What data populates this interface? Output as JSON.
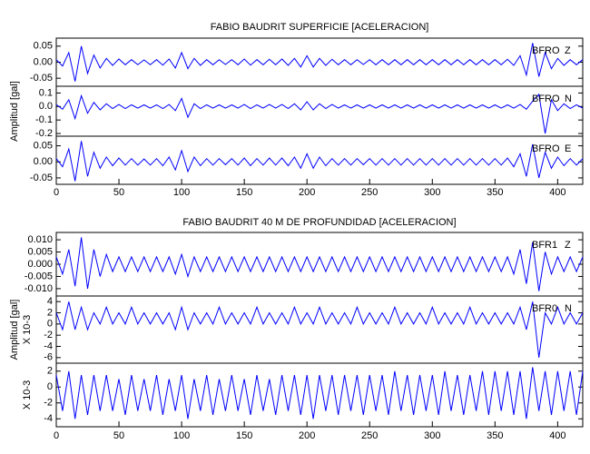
{
  "chart_data": [
    {
      "type": "line",
      "title": "FABIO BAUDRIT SUPERFICIE [ACELERACION]",
      "ylabel": "Amplitud [gal]",
      "color": "#0000ff",
      "xlim": [
        0,
        420
      ],
      "xticks": [
        0,
        50,
        100,
        150,
        200,
        250,
        300,
        350,
        400
      ],
      "x": [
        0,
        5,
        10,
        15,
        20,
        25,
        30,
        35,
        40,
        45,
        50,
        55,
        60,
        65,
        70,
        75,
        80,
        85,
        90,
        95,
        100,
        105,
        110,
        115,
        120,
        125,
        130,
        135,
        140,
        145,
        150,
        155,
        160,
        165,
        170,
        175,
        180,
        185,
        190,
        195,
        200,
        205,
        210,
        215,
        220,
        225,
        230,
        235,
        240,
        245,
        250,
        255,
        260,
        265,
        270,
        275,
        280,
        285,
        290,
        295,
        300,
        305,
        310,
        315,
        320,
        325,
        330,
        335,
        340,
        345,
        350,
        355,
        360,
        365,
        370,
        375,
        380,
        385,
        390,
        395,
        400,
        405,
        410,
        415,
        420
      ],
      "panels": [
        {
          "station": "BFRO",
          "component": "Z",
          "ylim": [
            -0.075,
            0.075
          ],
          "yticks": [
            0.05,
            {
              "value": 0,
              "label": "0.00"
            },
            -0.05
          ],
          "values": [
            0.008,
            -0.012,
            0.03,
            -0.06,
            0.05,
            -0.035,
            0.022,
            -0.018,
            0.012,
            -0.01,
            0.01,
            -0.008,
            0.008,
            -0.008,
            0.007,
            -0.008,
            0.008,
            -0.009,
            0.01,
            -0.018,
            0.03,
            -0.02,
            0.012,
            -0.01,
            0.008,
            -0.008,
            0.008,
            -0.007,
            0.008,
            -0.008,
            0.01,
            -0.009,
            0.008,
            -0.008,
            0.009,
            -0.008,
            0.01,
            -0.01,
            0.012,
            -0.015,
            0.02,
            -0.015,
            0.012,
            -0.01,
            0.009,
            -0.008,
            0.008,
            -0.008,
            0.008,
            -0.007,
            0.008,
            -0.008,
            0.008,
            -0.008,
            0.008,
            -0.008,
            0.008,
            -0.008,
            0.008,
            -0.008,
            0.008,
            -0.008,
            0.008,
            -0.008,
            0.008,
            -0.008,
            0.008,
            -0.008,
            0.008,
            -0.008,
            0.008,
            -0.008,
            0.009,
            -0.01,
            0.02,
            -0.04,
            0.06,
            -0.045,
            0.03,
            -0.02,
            0.012,
            -0.01,
            0.008,
            -0.008,
            0.008
          ]
        },
        {
          "station": "BFRO",
          "component": "N",
          "ylim": [
            -0.22,
            0.15
          ],
          "yticks": [
            0.1,
            {
              "value": 0,
              "label": "0.0"
            },
            -0.1,
            -0.2
          ],
          "values": [
            0.015,
            -0.02,
            0.05,
            -0.09,
            0.08,
            -0.05,
            0.03,
            -0.025,
            0.02,
            -0.015,
            0.015,
            -0.015,
            0.012,
            -0.012,
            0.012,
            -0.012,
            0.012,
            -0.015,
            0.015,
            -0.03,
            0.06,
            -0.08,
            0.02,
            -0.015,
            0.012,
            -0.012,
            0.012,
            -0.012,
            0.012,
            -0.012,
            0.015,
            -0.015,
            0.012,
            -0.012,
            0.015,
            -0.012,
            0.015,
            -0.015,
            0.02,
            -0.025,
            0.035,
            -0.025,
            0.02,
            -0.015,
            0.015,
            -0.012,
            0.012,
            -0.012,
            0.012,
            -0.012,
            0.012,
            -0.012,
            0.012,
            -0.012,
            0.012,
            -0.012,
            0.012,
            -0.012,
            0.012,
            -0.012,
            0.012,
            -0.012,
            0.012,
            -0.012,
            0.012,
            -0.012,
            0.012,
            -0.012,
            0.012,
            -0.012,
            0.012,
            -0.012,
            0.012,
            -0.012,
            0.015,
            -0.02,
            0.04,
            0.09,
            -0.2,
            0.05,
            -0.03,
            0.02,
            -0.015,
            0.012,
            -0.012
          ]
        },
        {
          "station": "BFRO",
          "component": "E",
          "ylim": [
            -0.07,
            0.08
          ],
          "yticks": [
            0.05,
            {
              "value": 0,
              "label": "0.00"
            },
            -0.05
          ],
          "values": [
            0.01,
            -0.015,
            0.04,
            -0.06,
            0.065,
            -0.045,
            0.03,
            -0.02,
            0.015,
            -0.012,
            0.012,
            -0.01,
            0.01,
            -0.01,
            0.009,
            -0.01,
            0.01,
            -0.012,
            0.015,
            -0.025,
            0.035,
            -0.03,
            0.015,
            -0.012,
            0.01,
            -0.01,
            0.01,
            -0.009,
            0.01,
            -0.01,
            0.012,
            -0.012,
            0.01,
            -0.01,
            0.012,
            -0.01,
            0.012,
            -0.012,
            0.015,
            -0.02,
            0.025,
            -0.02,
            0.015,
            -0.012,
            0.01,
            -0.01,
            0.01,
            -0.01,
            0.01,
            -0.009,
            0.01,
            -0.01,
            0.01,
            -0.01,
            0.01,
            -0.01,
            0.01,
            -0.01,
            0.01,
            -0.01,
            0.01,
            -0.01,
            0.01,
            -0.01,
            0.01,
            -0.01,
            0.01,
            -0.01,
            0.01,
            -0.01,
            0.01,
            -0.01,
            0.012,
            -0.015,
            0.025,
            -0.045,
            0.055,
            -0.05,
            0.03,
            -0.02,
            0.015,
            -0.012,
            0.01,
            -0.01,
            0.01
          ]
        }
      ]
    },
    {
      "type": "line",
      "title": "FABIO BAUDRIT 40 M DE PROFUNDIDAD [ACELERACION]",
      "ylabel": "Amplitud [gal]",
      "color": "#0000ff",
      "xlim": [
        0,
        420
      ],
      "xticks": [
        0,
        50,
        100,
        150,
        200,
        250,
        300,
        350,
        400
      ],
      "x": [
        0,
        5,
        10,
        15,
        20,
        25,
        30,
        35,
        40,
        45,
        50,
        55,
        60,
        65,
        70,
        75,
        80,
        85,
        90,
        95,
        100,
        105,
        110,
        115,
        120,
        125,
        130,
        135,
        140,
        145,
        150,
        155,
        160,
        165,
        170,
        175,
        180,
        185,
        190,
        195,
        200,
        205,
        210,
        215,
        220,
        225,
        230,
        235,
        240,
        245,
        250,
        255,
        260,
        265,
        270,
        275,
        280,
        285,
        290,
        295,
        300,
        305,
        310,
        315,
        320,
        325,
        330,
        335,
        340,
        345,
        350,
        355,
        360,
        365,
        370,
        375,
        380,
        385,
        390,
        395,
        400,
        405,
        410,
        415,
        420
      ],
      "panels": [
        {
          "station": "BFR1",
          "component": "Z",
          "ylim": [
            -0.013,
            0.013
          ],
          "yticks": [
            {
              "value": 0.01,
              "label": "0.010"
            },
            0.005,
            {
              "value": 0,
              "label": "0.000"
            },
            -0.005,
            {
              "value": -0.01,
              "label": "-0.010"
            }
          ],
          "values": [
            0.003,
            -0.004,
            0.006,
            -0.009,
            0.011,
            -0.01,
            0.006,
            -0.005,
            0.004,
            -0.003,
            0.003,
            -0.003,
            0.003,
            -0.003,
            0.003,
            -0.003,
            0.003,
            -0.003,
            0.003,
            -0.004,
            0.004,
            -0.005,
            0.003,
            -0.003,
            0.003,
            -0.003,
            0.003,
            -0.003,
            0.003,
            -0.003,
            0.003,
            -0.003,
            0.003,
            -0.003,
            0.003,
            -0.003,
            0.003,
            -0.003,
            0.003,
            -0.003,
            0.003,
            -0.003,
            0.003,
            -0.003,
            0.003,
            -0.003,
            0.003,
            -0.003,
            0.003,
            -0.003,
            0.003,
            -0.003,
            0.003,
            -0.003,
            0.003,
            -0.003,
            0.003,
            -0.003,
            0.003,
            -0.003,
            0.003,
            -0.003,
            0.003,
            -0.003,
            0.003,
            -0.003,
            0.003,
            -0.003,
            0.003,
            -0.003,
            0.003,
            -0.003,
            0.003,
            -0.004,
            0.006,
            -0.008,
            0.009,
            -0.011,
            0.005,
            -0.004,
            0.003,
            -0.003,
            0.003,
            -0.003,
            0.003
          ]
        },
        {
          "station": "BFR0",
          "component": "N",
          "scale_label": "X 10-3",
          "ylim": [
            -7,
            5
          ],
          "yticks": [
            4,
            2,
            0,
            -2,
            -4,
            -6
          ],
          "values": [
            2,
            -1,
            4,
            -1,
            3,
            -1,
            2,
            0,
            3,
            0,
            2,
            0,
            3,
            0,
            2,
            0,
            2,
            0,
            2,
            -1,
            3,
            -1,
            2,
            0,
            2,
            0,
            3,
            0,
            2,
            0,
            2,
            0,
            3,
            0,
            2,
            0,
            2,
            0,
            3,
            0,
            2,
            0,
            3,
            0,
            2,
            0,
            2,
            0,
            3,
            0,
            2,
            0,
            2,
            0,
            3,
            0,
            2,
            0,
            2,
            0,
            3,
            0,
            2,
            0,
            2,
            0,
            3,
            0,
            2,
            0,
            2,
            0,
            2,
            0,
            3,
            -1,
            4,
            -6,
            2,
            0,
            3,
            0,
            2,
            0,
            2
          ]
        },
        {
          "scale_label": "X 10-3",
          "ylim": [
            -5,
            3
          ],
          "yticks": [
            2,
            0,
            -2,
            -4
          ],
          "values": [
            1.5,
            -3,
            2,
            -4,
            1.5,
            -3.5,
            1.5,
            -3,
            1.5,
            -3,
            1,
            -3.5,
            1.5,
            -3,
            1,
            -3,
            1.5,
            -3.5,
            1,
            -3,
            1.5,
            -4,
            1,
            -3,
            1.5,
            -3.5,
            1,
            -3,
            1.5,
            -3,
            1,
            -3.5,
            1.5,
            -3,
            1,
            -3.5,
            1.5,
            -3,
            1.5,
            -3.5,
            1.5,
            -4,
            1.5,
            -3,
            1.5,
            -3.5,
            1.5,
            -3,
            1.5,
            -3.5,
            1.5,
            -3,
            1.5,
            -3.5,
            2,
            -3,
            1.5,
            -3.5,
            1.5,
            -3,
            1.5,
            -3.5,
            2,
            -3,
            1.5,
            -3.5,
            1.5,
            -3,
            2,
            -3.5,
            2,
            -3,
            2,
            -3.5,
            2,
            -4,
            2.5,
            -3,
            2,
            -3.5,
            2,
            -3,
            2,
            -3.5,
            2
          ]
        }
      ]
    }
  ]
}
